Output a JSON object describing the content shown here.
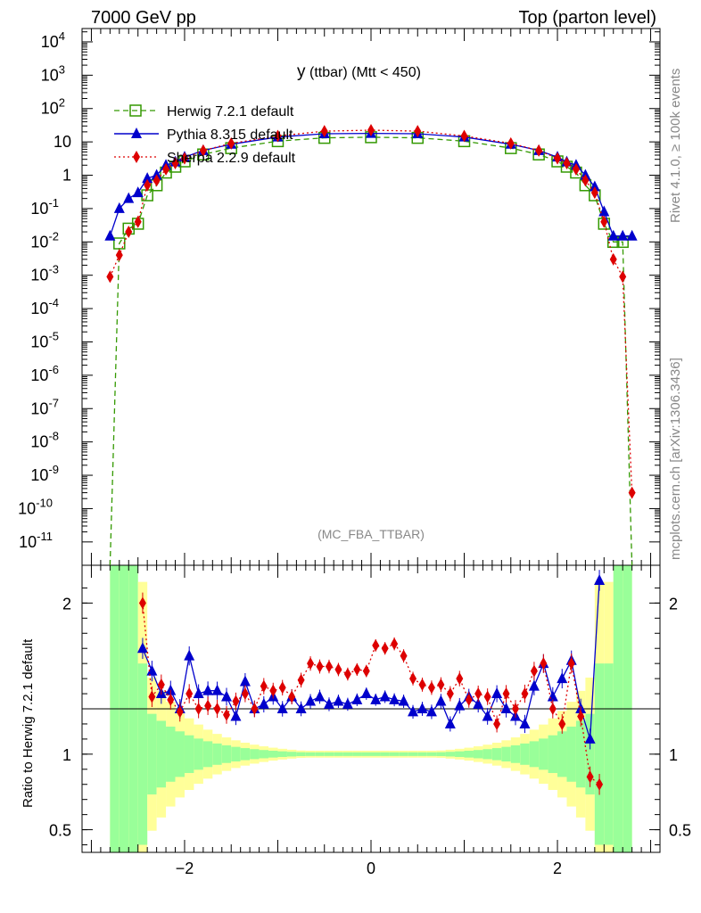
{
  "header": {
    "left": "7000 GeV pp",
    "right": "Top (parton level)"
  },
  "side_labels": {
    "rivet": "Rivet 4.1.0, ≥ 100k events",
    "mcplots": "mcplots.cern.ch [arXiv:1306.3436]"
  },
  "watermark": "(MC_FBA_TTBAR)",
  "plot_title": {
    "main": "y",
    "sub": "(ttbar) (Mtt < 450)"
  },
  "colors": {
    "herwig": "#339900",
    "pythia": "#0000cc",
    "sherpa": "#dd0000",
    "band_inner": "#99ff99",
    "band_outer": "#ffff99"
  },
  "chart_data": [
    {
      "type": "line",
      "panel": "main",
      "xlim": [
        -3.1,
        3.1
      ],
      "ylim_log10": [
        -11.7,
        4.4
      ],
      "yscale": "log",
      "y_tick_labels": [
        "10^4",
        "10^3",
        "10^2",
        "10",
        "1",
        "10^-1",
        "10^-2",
        "10^-3",
        "10^-4",
        "10^-5",
        "10^-6",
        "10^-7",
        "10^-8",
        "10^-9",
        "10^-10",
        "10^-11"
      ],
      "x_tick_labels": [
        "−2",
        "0",
        "2"
      ],
      "legend": [
        {
          "label": "Herwig 7.2.1 default",
          "marker": "open-square",
          "style": "dashed"
        },
        {
          "label": "Pythia 8.315 default",
          "marker": "triangle",
          "style": "solid"
        },
        {
          "label": "Sherpa 2.2.9 default",
          "marker": "diamond",
          "style": "dotted"
        }
      ],
      "x": [
        -2.8,
        -2.7,
        -2.6,
        -2.5,
        -2.4,
        -2.3,
        -2.2,
        -2.1,
        -2.0,
        -1.8,
        -1.5,
        -1.0,
        -0.5,
        0.0,
        0.5,
        1.0,
        1.5,
        1.8,
        2.0,
        2.1,
        2.2,
        2.3,
        2.4,
        2.5,
        2.6,
        2.7,
        2.8
      ],
      "series": [
        {
          "name": "Herwig 7.2.1 default",
          "values": [
            0.0,
            0.009,
            0.025,
            0.035,
            0.25,
            0.5,
            1.2,
            1.8,
            2.6,
            4.2,
            6.5,
            10.5,
            13.2,
            13.8,
            13.2,
            10.5,
            6.5,
            4.2,
            2.6,
            1.8,
            1.2,
            0.5,
            0.25,
            0.035,
            0.01,
            0.01,
            0.0
          ]
        },
        {
          "name": "Pythia 8.315 default",
          "values": [
            0.015,
            0.1,
            0.2,
            0.3,
            0.8,
            1.0,
            2.0,
            2.5,
            3.5,
            5.5,
            8.5,
            14.0,
            17.5,
            18.0,
            17.5,
            14.0,
            8.5,
            5.5,
            3.5,
            2.5,
            2.0,
            1.0,
            0.45,
            0.08,
            0.015,
            0.015,
            0.015
          ]
        },
        {
          "name": "Sherpa 2.2.9 default",
          "values": [
            0.0009,
            0.004,
            0.02,
            0.04,
            0.5,
            0.7,
            1.5,
            2.3,
            3.2,
            5.5,
            9.0,
            15.0,
            21.0,
            22.5,
            21.0,
            15.0,
            9.0,
            5.5,
            3.2,
            2.3,
            1.5,
            0.7,
            0.3,
            0.04,
            0.003,
            0.0009,
            3e-10
          ]
        }
      ]
    },
    {
      "type": "line",
      "panel": "ratio",
      "ylabel": "Ratio to Herwig 7.2.1 default",
      "ylim": [
        0.35,
        2.25
      ],
      "y_tick_labels": [
        "2",
        "1",
        "0.5"
      ],
      "x_tick_labels": [
        "−2",
        "0",
        "2"
      ],
      "x": [
        -2.45,
        -2.35,
        -2.25,
        -2.15,
        -2.05,
        -1.95,
        -1.85,
        -1.75,
        -1.65,
        -1.55,
        -1.45,
        -1.35,
        -1.25,
        -1.15,
        -1.05,
        -0.95,
        -0.85,
        -0.75,
        -0.65,
        -0.55,
        -0.45,
        -0.35,
        -0.25,
        -0.15,
        -0.05,
        0.05,
        0.15,
        0.25,
        0.35,
        0.45,
        0.55,
        0.65,
        0.75,
        0.85,
        0.95,
        1.05,
        1.15,
        1.25,
        1.35,
        1.45,
        1.55,
        1.65,
        1.75,
        1.85,
        1.95,
        2.05,
        2.15,
        2.25,
        2.35,
        2.45
      ],
      "series": [
        {
          "name": "Pythia 8.315 default",
          "values": [
            1.7,
            1.55,
            1.4,
            1.42,
            1.3,
            1.65,
            1.4,
            1.42,
            1.42,
            1.38,
            1.25,
            1.48,
            1.3,
            1.33,
            1.38,
            1.3,
            1.38,
            1.3,
            1.35,
            1.38,
            1.33,
            1.35,
            1.33,
            1.36,
            1.4,
            1.36,
            1.38,
            1.36,
            1.35,
            1.28,
            1.3,
            1.28,
            1.35,
            1.2,
            1.32,
            1.38,
            1.33,
            1.25,
            1.4,
            1.3,
            1.25,
            1.2,
            1.45,
            1.6,
            1.38,
            1.5,
            1.62,
            1.3,
            1.1,
            2.15
          ]
        },
        {
          "name": "Sherpa 2.2.9 default",
          "values": [
            2.0,
            1.38,
            1.46,
            1.36,
            1.28,
            1.4,
            1.3,
            1.32,
            1.3,
            1.26,
            1.35,
            1.4,
            1.3,
            1.45,
            1.42,
            1.44,
            1.38,
            1.49,
            1.6,
            1.58,
            1.58,
            1.56,
            1.53,
            1.56,
            1.55,
            1.72,
            1.7,
            1.73,
            1.65,
            1.5,
            1.46,
            1.44,
            1.46,
            1.4,
            1.5,
            1.36,
            1.4,
            1.38,
            1.2,
            1.4,
            1.3,
            1.4,
            1.55,
            1.6,
            1.3,
            1.2,
            1.6,
            1.25,
            0.85,
            0.8
          ]
        }
      ]
    }
  ]
}
